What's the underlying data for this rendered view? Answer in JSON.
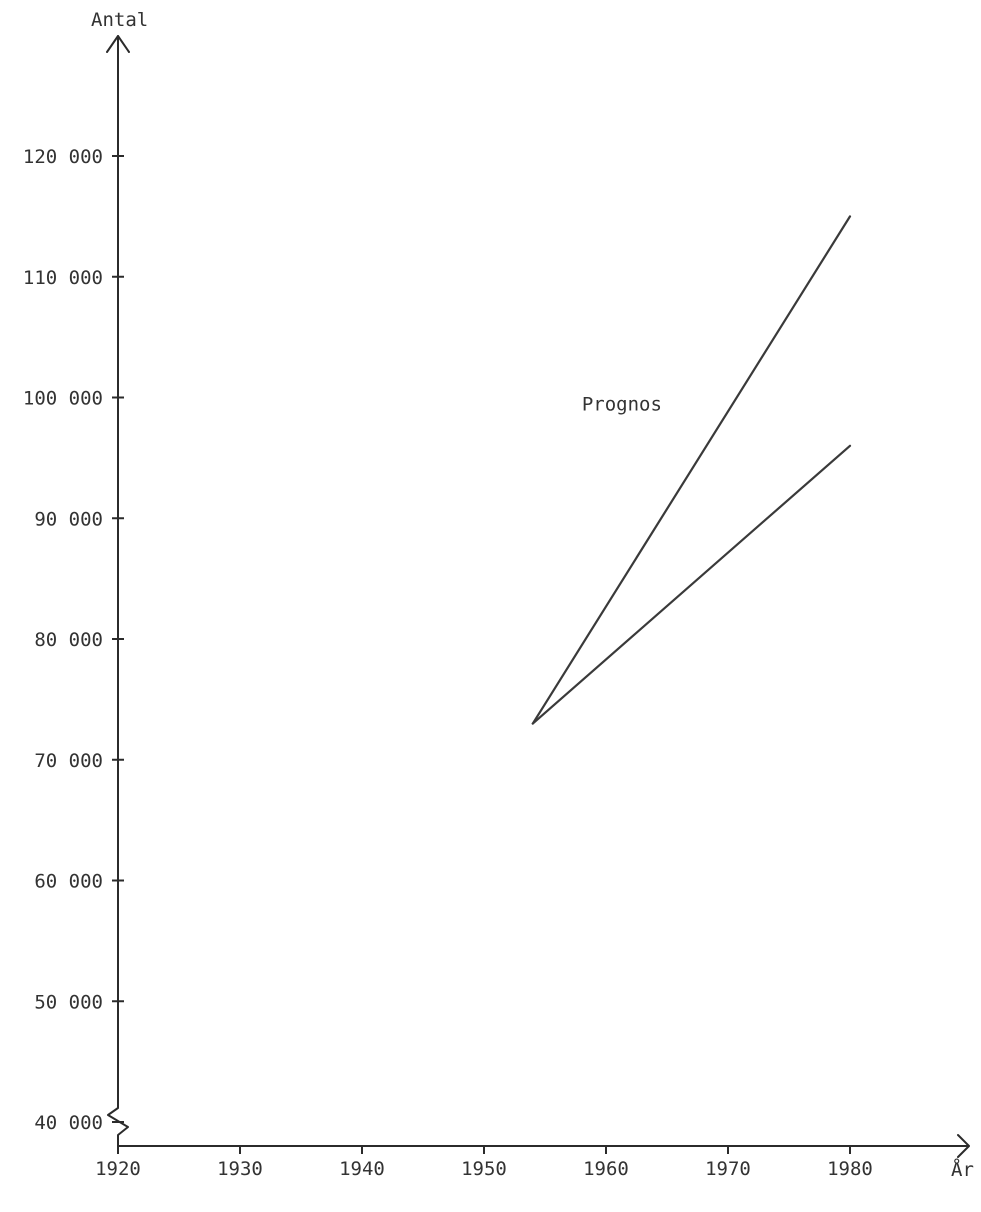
{
  "chart_data": {
    "type": "line",
    "title": "",
    "xlabel": "År",
    "ylabel": "Antal",
    "xlim": [
      1920,
      1990
    ],
    "ylim": [
      36000,
      128000
    ],
    "y_axis_break": true,
    "grid": false,
    "x_ticks": [
      1920,
      1930,
      1940,
      1950,
      1960,
      1970,
      1980
    ],
    "x_tick_labels": [
      "1920",
      "1930",
      "1940",
      "1950",
      "1960",
      "1970",
      "1980"
    ],
    "y_ticks": [
      40000,
      50000,
      60000,
      70000,
      80000,
      90000,
      100000,
      110000,
      120000
    ],
    "y_tick_labels": [
      "40 000",
      "50 000",
      "60 000",
      "70 000",
      "80 000",
      "90 000",
      "100 000",
      "110 000",
      "120 000"
    ],
    "series": [
      {
        "x": [
          1954,
          1980
        ],
        "y": [
          73000,
          115000
        ]
      },
      {
        "x": [
          1954,
          1980
        ],
        "y": [
          73000,
          96000
        ]
      }
    ],
    "annotations": [
      {
        "text": "Prognos",
        "x": 1961.3,
        "y": 99500
      }
    ],
    "colors": {
      "ink": "#2b2b2b",
      "background": "#ffffff"
    }
  }
}
